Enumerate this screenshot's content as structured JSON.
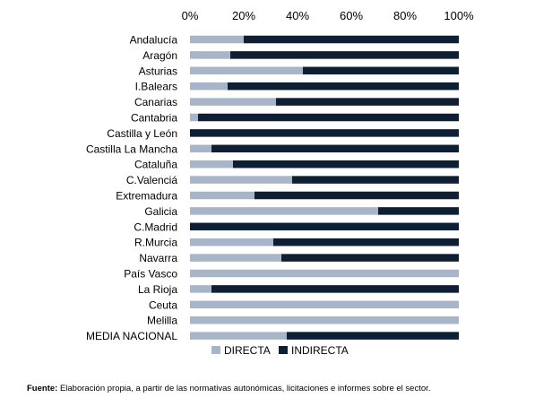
{
  "chart_data": {
    "type": "bar",
    "orientation": "horizontal",
    "stacked": "percent",
    "xlim": [
      0,
      100
    ],
    "x_ticks": [
      "0%",
      "20%",
      "40%",
      "60%",
      "80%",
      "100%"
    ],
    "grid": false,
    "legend_position": "bottom",
    "categories": [
      "Andalucía",
      "Aragón",
      "Asturias",
      "I.Balears",
      "Canarias",
      "Cantabria",
      "Castilla y León",
      "Castilla La Mancha",
      "Cataluña",
      "C.Valenciá",
      "Extremadura",
      "Galicia",
      "C.Madrid",
      "R.Murcia",
      "Navarra",
      "País Vasco",
      "La Rioja",
      "Ceuta",
      "Melilla",
      "MEDIA NACIONAL"
    ],
    "series": [
      {
        "name": "DIRECTA",
        "color": "#a8b4c8",
        "values": [
          20,
          15,
          42,
          14,
          32,
          3,
          0,
          8,
          16,
          38,
          24,
          70,
          0,
          31,
          34,
          100,
          8,
          100,
          100,
          36
        ]
      },
      {
        "name": "INDIRECTA",
        "color": "#0f1f33",
        "values": [
          80,
          85,
          58,
          86,
          68,
          97,
          100,
          92,
          84,
          62,
          76,
          30,
          100,
          69,
          66,
          0,
          92,
          0,
          0,
          64
        ]
      }
    ]
  },
  "source": {
    "label": "Fuente:",
    "text": " Elaboración propia, a partir de las normativas autonómicas, licitaciones e informes sobre el sector."
  }
}
